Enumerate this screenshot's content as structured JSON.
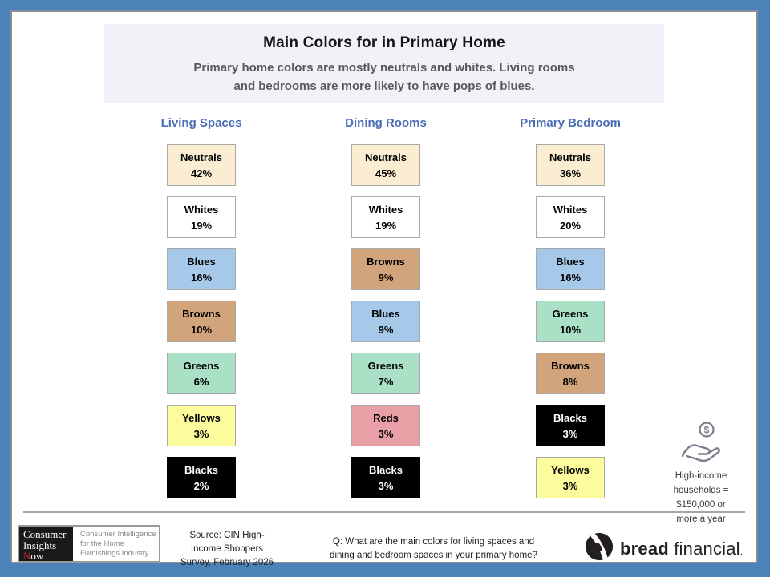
{
  "header": {
    "title": "Main Colors for in Primary Home",
    "subtitle_lines": [
      "Primary home colors are mostly neutrals and whites. Living rooms",
      "and bedrooms are more likely to have pops of blues."
    ]
  },
  "chart_data": {
    "type": "table",
    "title": "Main Colors for in Primary Home",
    "subtitle": "Primary home colors are mostly neutrals and whites. Living rooms and bedrooms are more likely to have pops of blues.",
    "unit": "percent",
    "groups": [
      {
        "label": "Living Spaces",
        "items": [
          {
            "label": "Neutrals",
            "pct": 42,
            "display": "42%",
            "bg": "#FAEDD2",
            "fg": "#000000"
          },
          {
            "label": "Whites",
            "pct": 19,
            "display": "19%",
            "bg": "#FFFFFF",
            "fg": "#000000"
          },
          {
            "label": "Blues",
            "pct": 16,
            "display": "16%",
            "bg": "#A6C9EA",
            "fg": "#000000"
          },
          {
            "label": "Browns",
            "pct": 10,
            "display": "10%",
            "bg": "#D2A47B",
            "fg": "#000000"
          },
          {
            "label": "Greens",
            "pct": 6,
            "display": "6%",
            "bg": "#A9E0C6",
            "fg": "#000000"
          },
          {
            "label": "Yellows",
            "pct": 3,
            "display": "3%",
            "bg": "#FCFC9D",
            "fg": "#000000"
          },
          {
            "label": "Blacks",
            "pct": 2,
            "display": "2%",
            "bg": "#000000",
            "fg": "#FFFFFF"
          }
        ]
      },
      {
        "label": "Dining Rooms",
        "items": [
          {
            "label": "Neutrals",
            "pct": 45,
            "display": "45%",
            "bg": "#FAEDD2",
            "fg": "#000000"
          },
          {
            "label": "Whites",
            "pct": 19,
            "display": "19%",
            "bg": "#FFFFFF",
            "fg": "#000000"
          },
          {
            "label": "Browns",
            "pct": 9,
            "display": "9%",
            "bg": "#D2A47B",
            "fg": "#000000"
          },
          {
            "label": "Blues",
            "pct": 9,
            "display": "9%",
            "bg": "#A6C9EA",
            "fg": "#000000"
          },
          {
            "label": "Greens",
            "pct": 7,
            "display": "7%",
            "bg": "#A9E0C6",
            "fg": "#000000"
          },
          {
            "label": "Reds",
            "pct": 3,
            "display": "3%",
            "bg": "#E8A0A6",
            "fg": "#000000"
          },
          {
            "label": "Blacks",
            "pct": 3,
            "display": "3%",
            "bg": "#000000",
            "fg": "#FFFFFF"
          }
        ]
      },
      {
        "label": "Primary Bedroom",
        "items": [
          {
            "label": "Neutrals",
            "pct": 36,
            "display": "36%",
            "bg": "#FAEDD2",
            "fg": "#000000"
          },
          {
            "label": "Whites",
            "pct": 20,
            "display": "20%",
            "bg": "#FFFFFF",
            "fg": "#000000"
          },
          {
            "label": "Blues",
            "pct": 16,
            "display": "16%",
            "bg": "#A6C9EA",
            "fg": "#000000"
          },
          {
            "label": "Greens",
            "pct": 10,
            "display": "10%",
            "bg": "#A9E0C6",
            "fg": "#000000"
          },
          {
            "label": "Browns",
            "pct": 8,
            "display": "8%",
            "bg": "#D2A47B",
            "fg": "#000000"
          },
          {
            "label": "Blacks",
            "pct": 3,
            "display": "3%",
            "bg": "#000000",
            "fg": "#FFFFFF"
          },
          {
            "label": "Yellows",
            "pct": 3,
            "display": "3%",
            "bg": "#FCFC9D",
            "fg": "#000000"
          }
        ]
      }
    ]
  },
  "annotation": {
    "icon": "money-hand-icon",
    "lines": [
      "High-income",
      "households =",
      "$150,000 or",
      "more a year"
    ]
  },
  "footer": {
    "cin_logo": {
      "name_line1": "Consumer",
      "name_line2": "Insights",
      "now_initial": "N",
      "now_rest": "ow",
      "tagline_lines": [
        "Consumer Intelligence",
        "for the Home",
        "Furnishings Industry"
      ]
    },
    "source_lines": [
      "Source: CIN High-",
      "Income Shoppers",
      "Survey, February 2026"
    ],
    "question_lines": [
      "Q: What are the main colors for living spaces and",
      "dining and bedroom spaces in your primary home?"
    ],
    "brand": {
      "bold": "bread",
      "light": " financial",
      "suffix": "."
    }
  },
  "colors": {
    "frame": "#4B82B7",
    "banner_bg": "#F1F2F8",
    "column_header_text": "#4A6DB5",
    "subtitle_text": "#595959",
    "divider": "#A6A6A6"
  }
}
